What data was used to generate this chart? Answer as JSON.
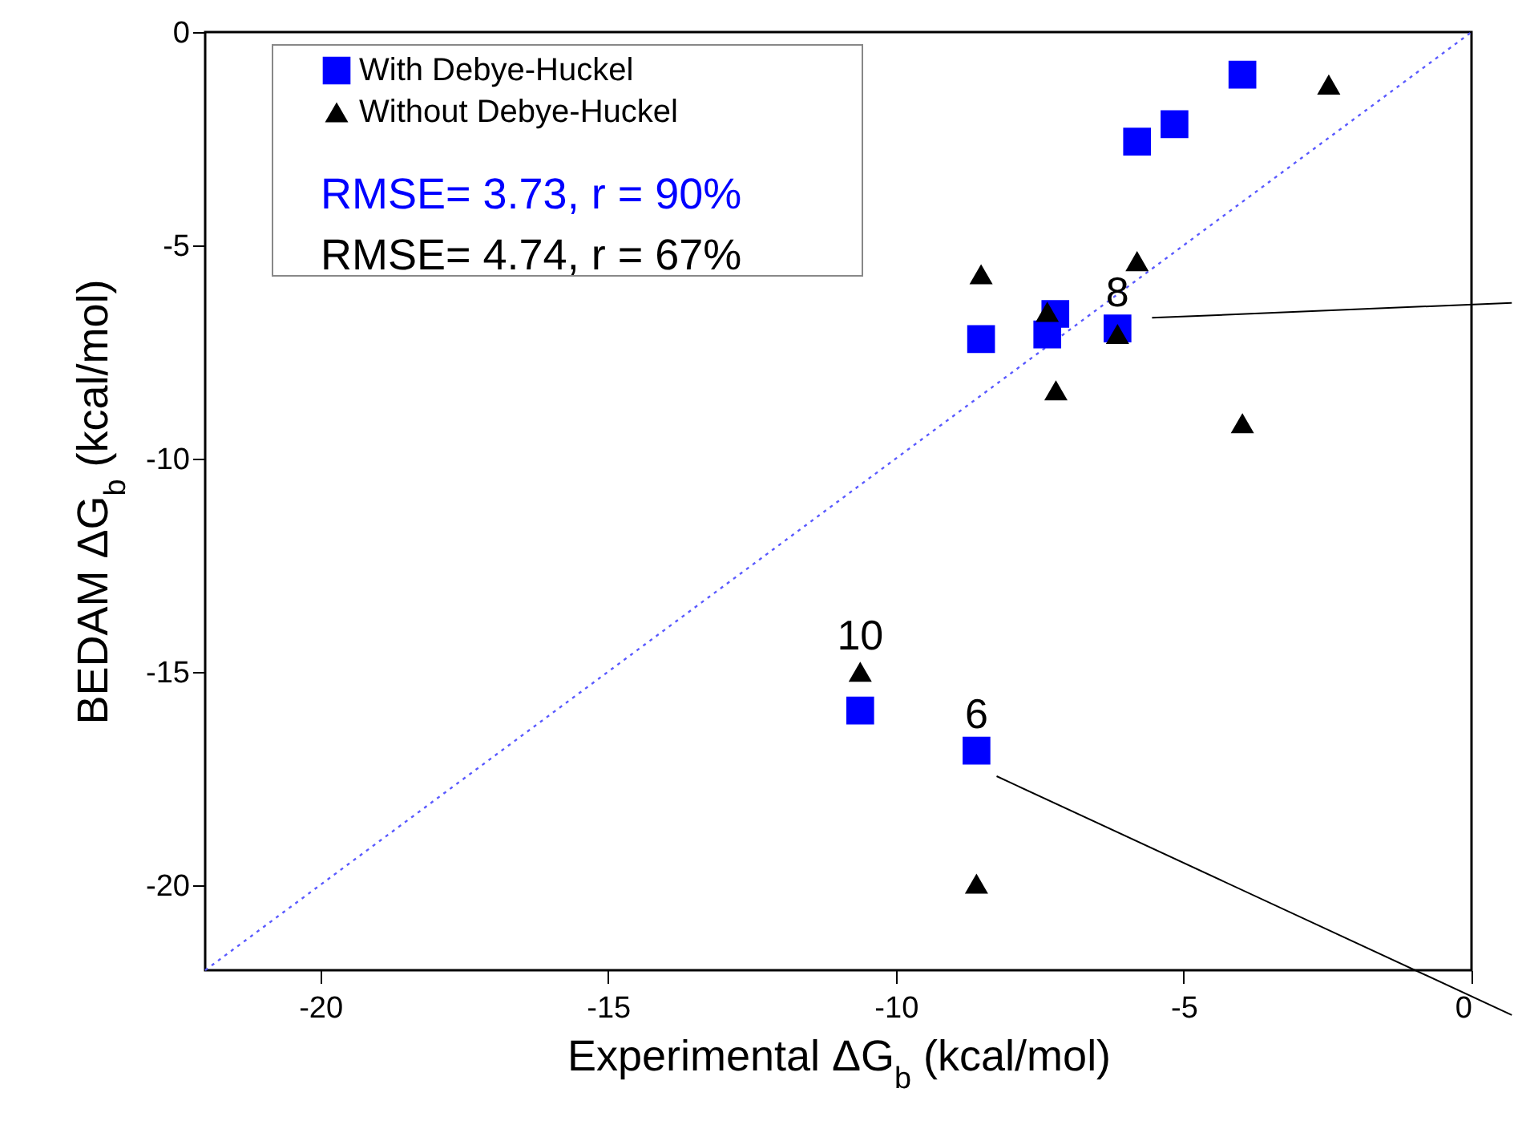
{
  "chart_data": {
    "type": "scatter",
    "xlabel": "Experimental ΔG$_{b}$ (kcal/mol)",
    "ylabel": "BEDAM ΔG$_{b}$ (kcal/mol)",
    "xlim": [
      -22,
      0
    ],
    "ylim": [
      -22,
      0
    ],
    "xticks": [
      -20,
      -15,
      -10,
      -5,
      0
    ],
    "yticks": [
      -20,
      -15,
      -10,
      -5,
      0
    ],
    "grid": false,
    "legend": "top left",
    "series": [
      {
        "name": "With Debye-Huckel",
        "marker": "square",
        "color": "#0000ff",
        "x": [
          -3.98,
          -5.81,
          -5.16,
          -8.52,
          -7.23,
          -7.37,
          -6.15,
          -10.62,
          -8.6
        ],
        "values": [
          -1.0,
          -2.57,
          -2.16,
          -7.2,
          -6.61,
          -7.09,
          -6.95,
          -15.91,
          -16.85
        ]
      },
      {
        "name": "Without Debye-Huckel",
        "marker": "triangle",
        "color": "#000000",
        "x": [
          -2.48,
          -5.81,
          -8.52,
          -7.37,
          -6.15,
          -7.22,
          -3.98,
          -10.62,
          -8.6
        ],
        "values": [
          -1.23,
          -5.37,
          -5.68,
          -6.56,
          -7.08,
          -8.4,
          -9.17,
          -15.0,
          -19.97
        ]
      },
      {
        "type": "line",
        "line_style": "dotted",
        "marker": "none",
        "color": "#5a5aff",
        "x": [
          -22,
          0
        ],
        "values": [
          -22,
          0
        ]
      }
    ],
    "annotations": [
      "RMSE= 3.73, r = 90%",
      "RMSE= 4.74, r = 67%",
      {
        "text": "8",
        "x": -6.15,
        "y": -6.95
      },
      {
        "text": "6",
        "x": -8.6,
        "y": -16.85
      },
      {
        "text": "10",
        "x": -10.62,
        "y": -15.0
      }
    ]
  }
}
